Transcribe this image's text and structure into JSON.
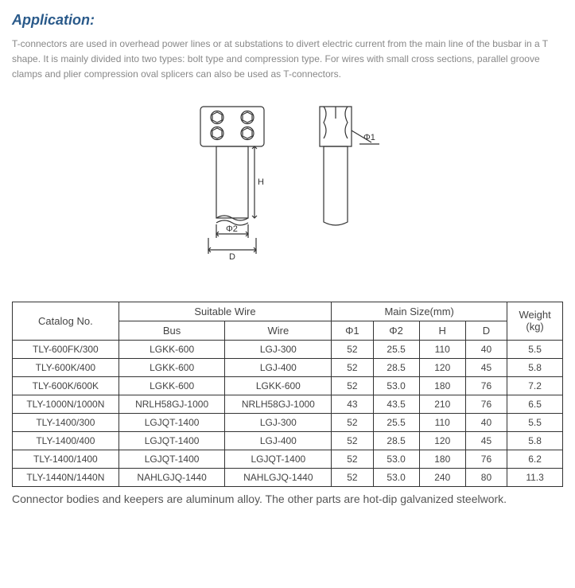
{
  "title": "Application:",
  "description": "T-connectors are used in overhead power lines or at substations to divert electric current from the main line of the busbar in a T shape. It is mainly divided into two types: bolt type and compression type. For wires with small cross sections, parallel groove clamps and plier compression oval splicers can also be used as T-connectors.",
  "diagram": {
    "labels": {
      "phi1": "Φ1",
      "phi2": "Φ2",
      "H": "H",
      "D": "D"
    },
    "stroke": "#333333",
    "fill": "#ffffff"
  },
  "table": {
    "header": {
      "catalog": "Catalog No.",
      "suitable_wire": "Suitable  Wire",
      "main_size": "Main Size(mm)",
      "weight": "Weight (kg)",
      "bus": "Bus",
      "wire": "Wire",
      "phi1": "Φ1",
      "phi2": "Φ2",
      "h": "H",
      "d": "D"
    },
    "rows": [
      {
        "catalog": "TLY-600FK/300",
        "bus": "LGKK-600",
        "wire": "LGJ-300",
        "phi1": "52",
        "phi2": "25.5",
        "h": "110",
        "d": "40",
        "weight": "5.5"
      },
      {
        "catalog": "TLY-600K/400",
        "bus": "LGKK-600",
        "wire": "LGJ-400",
        "phi1": "52",
        "phi2": "28.5",
        "h": "120",
        "d": "45",
        "weight": "5.8"
      },
      {
        "catalog": "TLY-600K/600K",
        "bus": "LGKK-600",
        "wire": "LGKK-600",
        "phi1": "52",
        "phi2": "53.0",
        "h": "180",
        "d": "76",
        "weight": "7.2"
      },
      {
        "catalog": "TLY-1000N/1000N",
        "bus": "NRLH58GJ-1000",
        "wire": "NRLH58GJ-1000",
        "phi1": "43",
        "phi2": "43.5",
        "h": "210",
        "d": "76",
        "weight": "6.5"
      },
      {
        "catalog": "TLY-1400/300",
        "bus": "LGJQT-1400",
        "wire": "LGJ-300",
        "phi1": "52",
        "phi2": "25.5",
        "h": "110",
        "d": "40",
        "weight": "5.5"
      },
      {
        "catalog": "TLY-1400/400",
        "bus": "LGJQT-1400",
        "wire": "LGJ-400",
        "phi1": "52",
        "phi2": "28.5",
        "h": "120",
        "d": "45",
        "weight": "5.8"
      },
      {
        "catalog": "TLY-1400/1400",
        "bus": "LGJQT-1400",
        "wire": "LGJQT-1400",
        "phi1": "52",
        "phi2": "53.0",
        "h": "180",
        "d": "76",
        "weight": "6.2"
      },
      {
        "catalog": "TLY-1440N/1440N",
        "bus": "NAHLGJQ-1440",
        "wire": "NAHLGJQ-1440",
        "phi1": "52",
        "phi2": "53.0",
        "h": "240",
        "d": "80",
        "weight": "11.3"
      }
    ]
  },
  "footer_note": "Connector bodies and keepers are aluminum alloy. The other parts are hot-dip galvanized steelwork."
}
